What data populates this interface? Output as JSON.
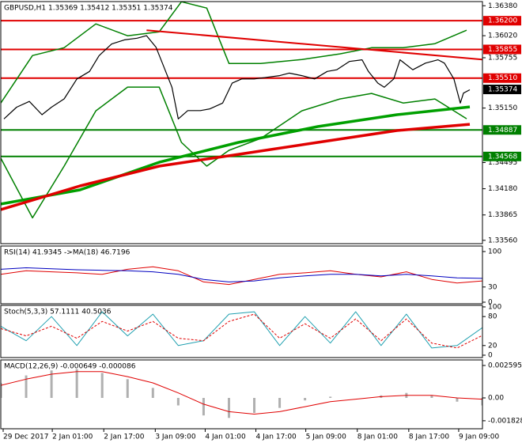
{
  "chart_data": [
    {
      "type": "line",
      "title": "GBPUSD,H1  1.35369 1.35412 1.35351 1.35374",
      "xlim": [
        0,
        152
      ],
      "ylim": [
        1.3352,
        1.3643
      ],
      "xticks": [
        {
          "value": 0.75,
          "label": "29 Dec 2017"
        },
        {
          "value": 16.25,
          "label": "2 Jan 01:00"
        },
        {
          "value": 32.5,
          "label": "2 Jan 17:00"
        },
        {
          "value": 48.75,
          "label": "3 Jan 09:00"
        },
        {
          "value": 64.5,
          "label": "4 Jan 01:00"
        },
        {
          "value": 80.5,
          "label": "4 Jan 17:00"
        },
        {
          "value": 96.25,
          "label": "5 Jan 09:00"
        },
        {
          "value": 112.5,
          "label": "8 Jan 01:00"
        },
        {
          "value": 128.75,
          "label": "8 Jan 17:00"
        },
        {
          "value": 144.5,
          "label": "9 Jan 09:00"
        }
      ],
      "yticks": [
        {
          "value": 1.3638,
          "label": "1.36380"
        },
        {
          "value": 1.3602,
          "label": "1.36020"
        },
        {
          "value": 1.35755,
          "label": "1.35755"
        },
        {
          "value": 1.3515,
          "label": "1.35150"
        },
        {
          "value": 1.34495,
          "label": "1.34495"
        },
        {
          "value": 1.3418,
          "label": "1.34180"
        },
        {
          "value": 1.33865,
          "label": "1.33865"
        },
        {
          "value": 1.3356,
          "label": "1.33560"
        }
      ],
      "levels": [
        {
          "value": 1.362,
          "label": "1.36200",
          "color": "#e00000"
        },
        {
          "value": 1.35855,
          "label": "1.35855",
          "color": "#e00000"
        },
        {
          "value": 1.3551,
          "label": "1.35510",
          "color": "#e00000"
        },
        {
          "value": 1.34887,
          "label": "1.34887",
          "color": "#008000"
        },
        {
          "value": 1.34568,
          "label": "1.34568",
          "color": "#008000"
        }
      ],
      "current_price": {
        "value": 1.35374,
        "label": "1.35374"
      },
      "series": [
        {
          "color": "#008000",
          "width": 1.5,
          "x": [
            0,
            10,
            20,
            30,
            40,
            50,
            57,
            65,
            72,
            82,
            95,
            107,
            117,
            127,
            137,
            147
          ],
          "values": [
            1.35211,
            1.35781,
            1.35876,
            1.36162,
            1.36019,
            1.36067,
            1.36428,
            1.36352,
            1.35686,
            1.35686,
            1.35734,
            1.35801,
            1.35876,
            1.35876,
            1.35924,
            1.36086
          ]
        },
        {
          "color": "#008000",
          "width": 1.5,
          "x": [
            0,
            10,
            20,
            30,
            40,
            50,
            57,
            65,
            72,
            82,
            95,
            107,
            117,
            127,
            137,
            147
          ],
          "values": [
            1.34547,
            1.3383,
            1.34452,
            1.35117,
            1.35402,
            1.35402,
            1.34737,
            1.34452,
            1.34642,
            1.34784,
            1.35117,
            1.35259,
            1.35326,
            1.35211,
            1.35259,
            1.35022
          ]
        },
        {
          "color": "#00a000",
          "width": 3.5,
          "x": [
            0,
            25,
            50,
            75,
            100,
            125,
            148
          ],
          "values": [
            1.33996,
            1.34167,
            1.34499,
            1.34737,
            1.34927,
            1.3507,
            1.35164
          ]
        },
        {
          "color": "#e00000",
          "width": 3.5,
          "x": [
            0,
            25,
            50,
            75,
            100,
            125,
            148
          ],
          "values": [
            1.33929,
            1.34214,
            1.34452,
            1.34594,
            1.34737,
            1.3488,
            1.34955
          ]
        },
        {
          "color": "#e00000",
          "width": 2,
          "x": [
            46,
            152
          ],
          "values": [
            1.36086,
            1.35734
          ]
        },
        {
          "color": "#000000",
          "width": 1.2,
          "x": [
            1,
            5,
            9,
            13,
            16,
            20,
            24,
            28,
            31,
            35,
            39,
            43,
            46,
            49,
            51,
            54,
            56,
            59,
            63,
            66,
            70,
            73,
            76,
            80,
            84,
            88,
            91,
            95,
            99,
            103,
            106,
            110,
            114,
            116,
            119,
            121,
            124,
            126,
            130,
            134,
            138,
            140,
            143,
            145,
            146,
            148
          ],
          "values": [
            1.3502,
            1.3516,
            1.3523,
            1.3507,
            1.3516,
            1.3526,
            1.355,
            1.3559,
            1.3578,
            1.3592,
            1.3597,
            1.3599,
            1.3602,
            1.3588,
            1.3569,
            1.354,
            1.3502,
            1.3512,
            1.3512,
            1.3514,
            1.3521,
            1.3545,
            1.355,
            1.355,
            1.3552,
            1.3554,
            1.3557,
            1.3554,
            1.355,
            1.3559,
            1.3561,
            1.3571,
            1.3573,
            1.3559,
            1.3545,
            1.354,
            1.355,
            1.3573,
            1.3561,
            1.3569,
            1.3573,
            1.3569,
            1.355,
            1.3521,
            1.3533,
            1.3537
          ]
        }
      ]
    },
    {
      "type": "line",
      "title": "RSI(14) 41.9345  ->MA(18) 46.7196",
      "xlim": [
        0,
        152
      ],
      "ylim": [
        -3.1,
        110.9
      ],
      "yticks": [
        100,
        30,
        0
      ],
      "series": [
        {
          "color": "#e00000",
          "width": 1,
          "x": [
            0,
            8,
            16,
            24,
            32,
            40,
            48,
            56,
            64,
            72,
            80,
            88,
            96,
            104,
            112,
            120,
            128,
            136,
            144,
            152
          ],
          "values": [
            55,
            62,
            60,
            58,
            55,
            65,
            70,
            62,
            40,
            35,
            45,
            55,
            58,
            62,
            55,
            50,
            60,
            45,
            38,
            42
          ]
        },
        {
          "color": "#0000c0",
          "width": 1,
          "x": [
            0,
            8,
            16,
            24,
            32,
            40,
            48,
            56,
            64,
            72,
            80,
            88,
            96,
            104,
            112,
            120,
            128,
            136,
            144,
            152
          ],
          "values": [
            65,
            68,
            66,
            64,
            63,
            62,
            60,
            55,
            45,
            40,
            42,
            48,
            52,
            55,
            55,
            52,
            55,
            52,
            48,
            47
          ]
        }
      ]
    },
    {
      "type": "line",
      "title": "Stoch(5,3,3) 57.1111 40.5036",
      "xlim": [
        0,
        152
      ],
      "ylim": [
        -4.9,
        103.2
      ],
      "yticks": [
        100,
        80,
        20,
        0
      ],
      "series": [
        {
          "color": "#20a0b0",
          "width": 1,
          "x": [
            0,
            8,
            16,
            24,
            32,
            40,
            48,
            56,
            64,
            72,
            80,
            88,
            96,
            104,
            112,
            120,
            128,
            136,
            144,
            152
          ],
          "values": [
            60,
            30,
            80,
            20,
            90,
            40,
            85,
            20,
            30,
            85,
            90,
            20,
            80,
            25,
            90,
            20,
            85,
            15,
            20,
            57
          ]
        },
        {
          "color": "#e00000",
          "width": 1,
          "dash": "3 2",
          "x": [
            0,
            8,
            16,
            24,
            32,
            40,
            48,
            56,
            64,
            72,
            80,
            88,
            96,
            104,
            112,
            120,
            128,
            136,
            144,
            152
          ],
          "values": [
            55,
            40,
            60,
            35,
            70,
            50,
            70,
            35,
            30,
            70,
            85,
            35,
            65,
            35,
            75,
            30,
            75,
            25,
            15,
            41
          ]
        }
      ]
    },
    {
      "type": "bar",
      "title": "MACD(12,26,9) -0.000649 -0.000086",
      "xlim": [
        0,
        152
      ],
      "ylim": [
        -0.002468,
        0.003038
      ],
      "yticks": [
        0.002595,
        {
          "value": 0,
          "label": "0.00"
        },
        -0.001828
      ],
      "series": [
        {
          "type": "bar",
          "color": "#b0b0b0",
          "x": [
            0,
            8,
            16,
            24,
            32,
            40,
            48,
            56,
            64,
            72,
            80,
            88,
            96,
            104,
            112,
            120,
            128,
            136,
            144,
            152
          ],
          "values": [
            0.0012,
            0.0018,
            0.0022,
            0.0023,
            0.002,
            0.0015,
            0.0008,
            -0.0006,
            -0.0014,
            -0.0016,
            -0.0012,
            -0.0008,
            -0.0002,
            0.0001,
            0.0,
            0.0002,
            0.0004,
            0.0002,
            -0.0003,
            -0.0006
          ]
        },
        {
          "type": "line",
          "color": "#e00000",
          "width": 1,
          "x": [
            0,
            8,
            16,
            24,
            32,
            40,
            48,
            56,
            64,
            72,
            80,
            88,
            96,
            104,
            112,
            120,
            128,
            136,
            144,
            152
          ],
          "values": [
            0.001,
            0.0015,
            0.0019,
            0.0021,
            0.0021,
            0.0017,
            0.0012,
            0.0004,
            -0.0005,
            -0.0011,
            -0.0013,
            -0.0011,
            -0.0007,
            -0.0003,
            -0.0001,
            0.0001,
            0.0002,
            0.0002,
            0.0,
            -0.0001
          ]
        }
      ]
    }
  ]
}
